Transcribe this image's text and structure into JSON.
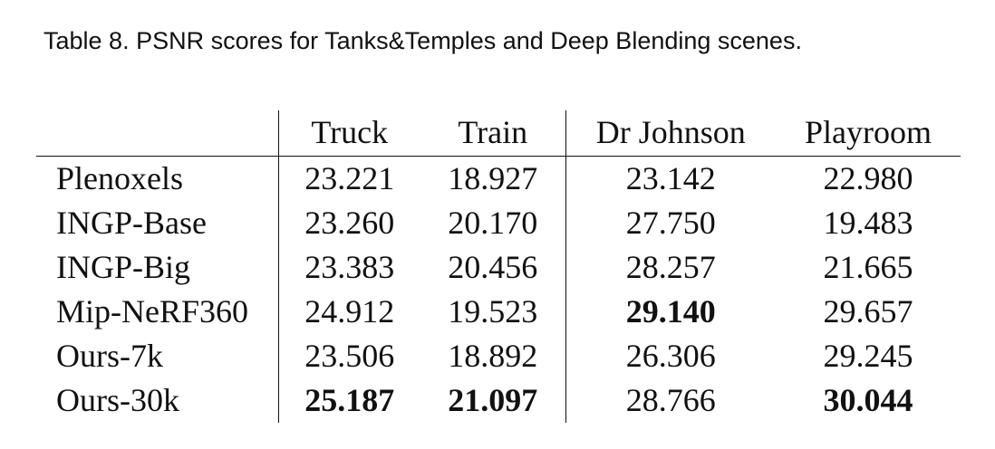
{
  "caption": "Table 8.  PSNR scores for Tanks&Temples and Deep Blending scenes.",
  "table": {
    "columns": [
      "",
      "Truck",
      "Train",
      "Dr Johnson",
      "Playroom"
    ],
    "rows": [
      {
        "method": "Plenoxels",
        "values": [
          "23.221",
          "18.927",
          "23.142",
          "22.980"
        ],
        "bold": [
          false,
          false,
          false,
          false
        ]
      },
      {
        "method": "INGP-Base",
        "values": [
          "23.260",
          "20.170",
          "27.750",
          "19.483"
        ],
        "bold": [
          false,
          false,
          false,
          false
        ]
      },
      {
        "method": "INGP-Big",
        "values": [
          "23.383",
          "20.456",
          "28.257",
          "21.665"
        ],
        "bold": [
          false,
          false,
          false,
          false
        ]
      },
      {
        "method": "Mip-NeRF360",
        "values": [
          "24.912",
          "19.523",
          "29.140",
          "29.657"
        ],
        "bold": [
          false,
          false,
          true,
          false
        ]
      },
      {
        "method": "Ours-7k",
        "values": [
          "23.506",
          "18.892",
          "26.306",
          "29.245"
        ],
        "bold": [
          false,
          false,
          false,
          false
        ]
      },
      {
        "method": "Ours-30k",
        "values": [
          "25.187",
          "21.097",
          "28.766",
          "30.044"
        ],
        "bold": [
          true,
          true,
          false,
          true
        ]
      }
    ]
  }
}
